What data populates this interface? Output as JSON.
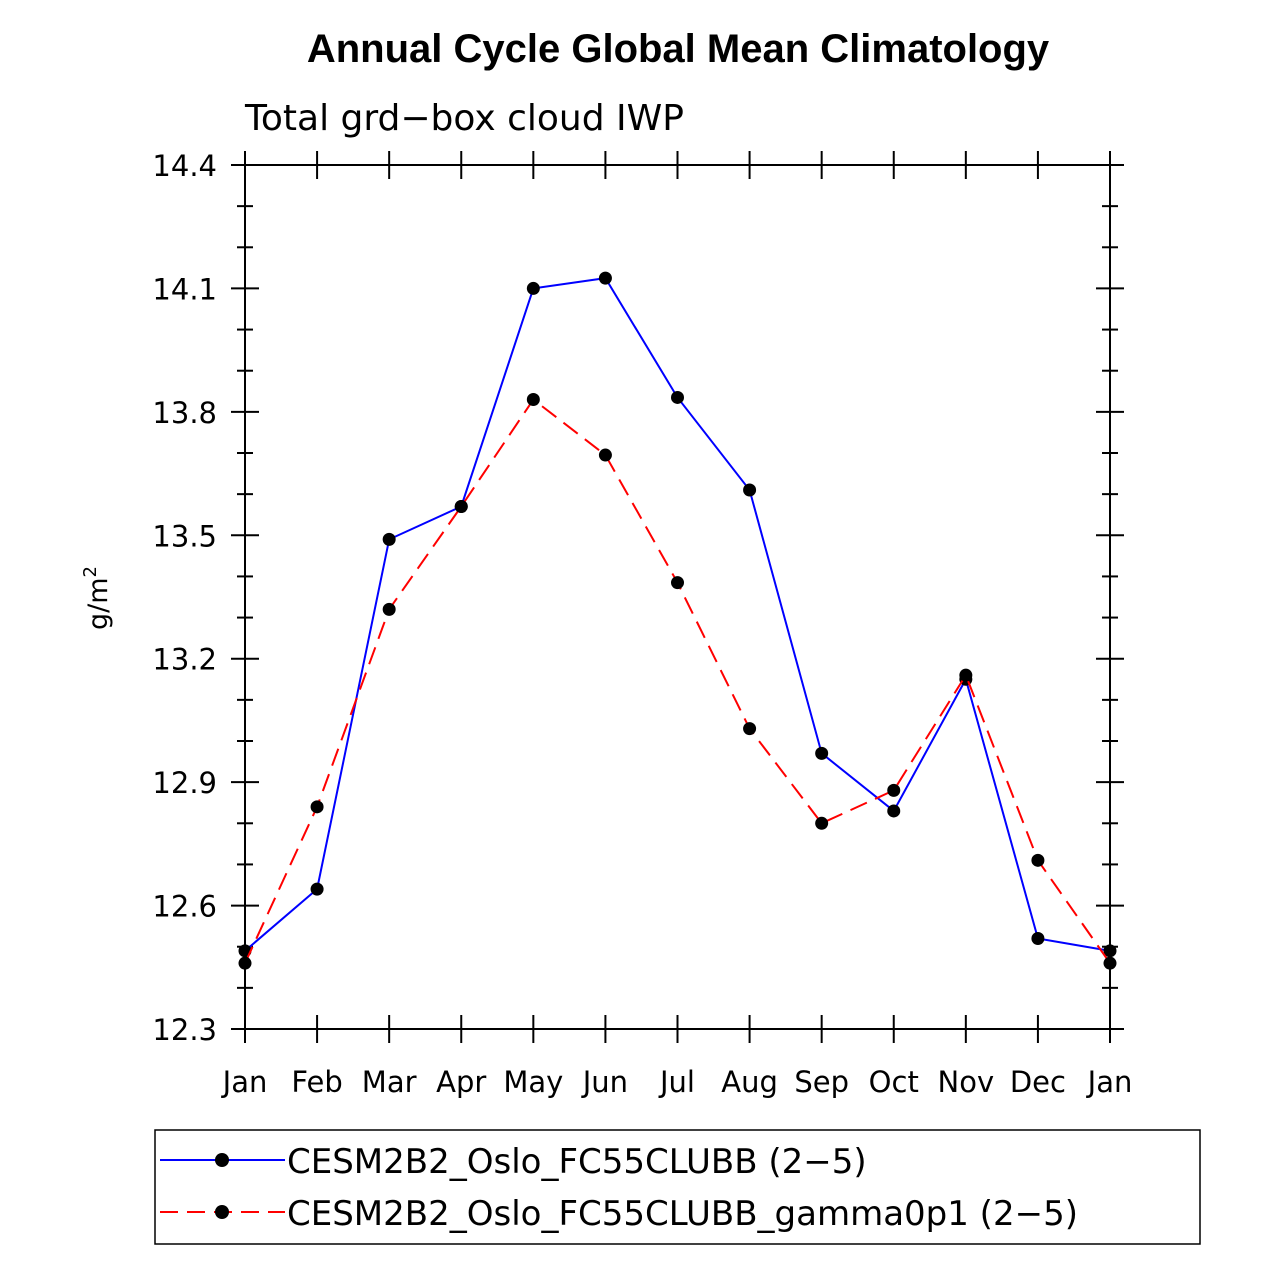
{
  "chart_data": {
    "type": "line",
    "title": "Annual Cycle Global Mean Climatology",
    "subtitle": "Total grd−box cloud IWP",
    "ylabel": "g/m",
    "ylabel_superscript": "2",
    "xlabel": "",
    "categories": [
      "Jan",
      "Feb",
      "Mar",
      "Apr",
      "May",
      "Jun",
      "Jul",
      "Aug",
      "Sep",
      "Oct",
      "Nov",
      "Dec",
      "Jan"
    ],
    "ylim": [
      12.3,
      14.4
    ],
    "yticks": [
      "12.3",
      "12.6",
      "12.9",
      "13.2",
      "13.5",
      "13.8",
      "14.1",
      "14.4"
    ],
    "legend_position": "bottom",
    "series": [
      {
        "name": "CESM2B2_Oslo_FC55CLUBB (2−5)",
        "color": "#0000ff",
        "dash": "solid",
        "values": [
          12.49,
          12.64,
          13.49,
          13.57,
          14.1,
          14.125,
          13.835,
          13.61,
          12.97,
          12.83,
          13.15,
          12.52,
          12.49
        ]
      },
      {
        "name": "CESM2B2_Oslo_FC55CLUBB_gamma0p1 (2−5)",
        "color": "#ff0000",
        "dash": "dashed",
        "values": [
          12.46,
          12.84,
          13.32,
          13.57,
          13.83,
          13.695,
          13.385,
          13.03,
          12.8,
          12.88,
          13.16,
          12.71,
          12.46
        ]
      }
    ]
  }
}
